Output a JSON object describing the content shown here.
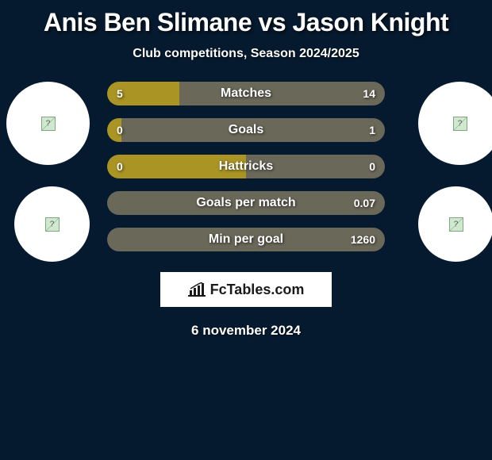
{
  "title": "Anis Ben Slimane vs Jason Knight",
  "subtitle": "Club competitions, Season 2024/2025",
  "date": "6 november 2024",
  "branding": "FcTables.com",
  "colors": {
    "background": "#051a2e",
    "player1": "#a99424",
    "player2": "#6a6859",
    "text": "#ffffff"
  },
  "stats": [
    {
      "label": "Matches",
      "p1": "5",
      "p2": "14",
      "p1_pct": 26,
      "p2_pct": 74
    },
    {
      "label": "Goals",
      "p1": "0",
      "p2": "1",
      "p1_pct": 5,
      "p2_pct": 95
    },
    {
      "label": "Hattricks",
      "p1": "0",
      "p2": "0",
      "p1_pct": 50,
      "p2_pct": 50
    },
    {
      "label": "Goals per match",
      "p1": "",
      "p2": "0.07",
      "p1_pct": 0,
      "p2_pct": 100
    },
    {
      "label": "Min per goal",
      "p1": "",
      "p2": "1260",
      "p1_pct": 0,
      "p2_pct": 100
    }
  ]
}
